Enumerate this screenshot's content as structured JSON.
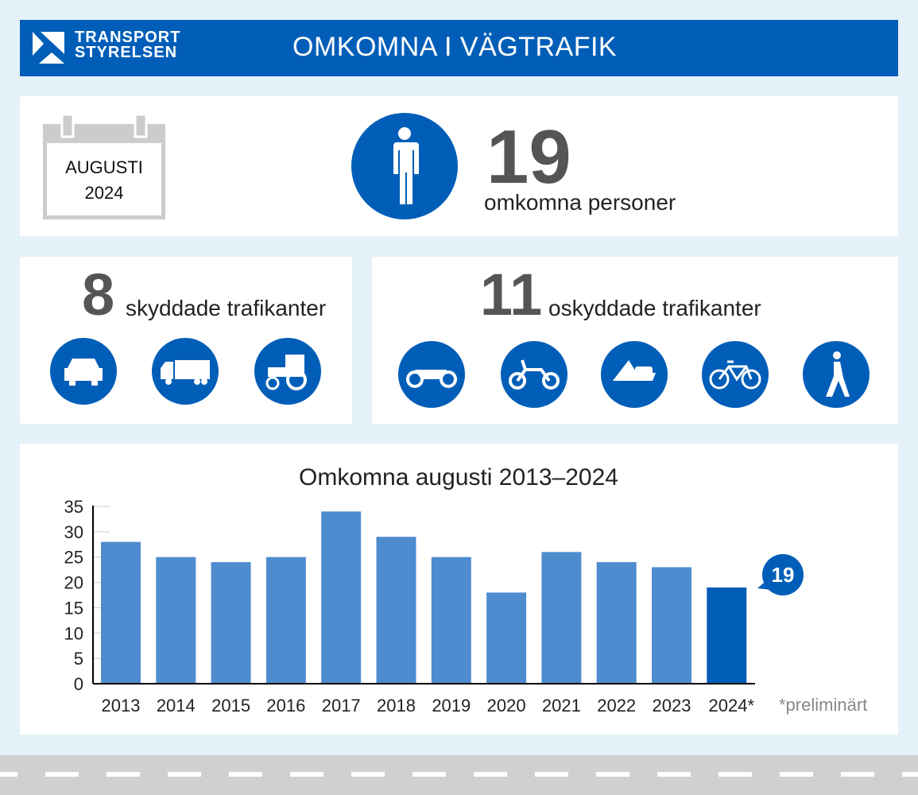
{
  "header": {
    "logo_line1": "TRANSPORT",
    "logo_line2": "STYRELSEN",
    "title": "OMKOMNA I VÄGTRAFIK"
  },
  "calendar": {
    "month": "AUGUSTI",
    "year": "2024"
  },
  "total": {
    "value": "19",
    "label": "omkomna personer",
    "icon": "person-icon"
  },
  "protected": {
    "value": "8",
    "label": "skyddade trafikanter",
    "icons": [
      "car-icon",
      "truck-icon",
      "tractor-icon"
    ]
  },
  "unprotected": {
    "value": "11",
    "label": "oskyddade trafikanter",
    "icons": [
      "motorcycle-icon",
      "moped-icon",
      "snowmobile-icon",
      "bicycle-icon",
      "pedestrian-icon"
    ]
  },
  "colors": {
    "brand": "#005eb8",
    "bar": "#4f8ccf",
    "bar_highlight": "#005eb8"
  },
  "chart_data": {
    "type": "bar",
    "title": "Omkomna augusti 2013–2024",
    "categories": [
      "2013",
      "2014",
      "2015",
      "2016",
      "2017",
      "2018",
      "2019",
      "2020",
      "2021",
      "2022",
      "2023",
      "2024*"
    ],
    "values": [
      28,
      25,
      24,
      25,
      34,
      29,
      25,
      18,
      26,
      24,
      23,
      19
    ],
    "ylim": [
      0,
      35
    ],
    "yticks": [
      0,
      5,
      10,
      15,
      20,
      25,
      30,
      35
    ],
    "callout": "19",
    "footnote": "*preliminärt",
    "grid": false
  }
}
